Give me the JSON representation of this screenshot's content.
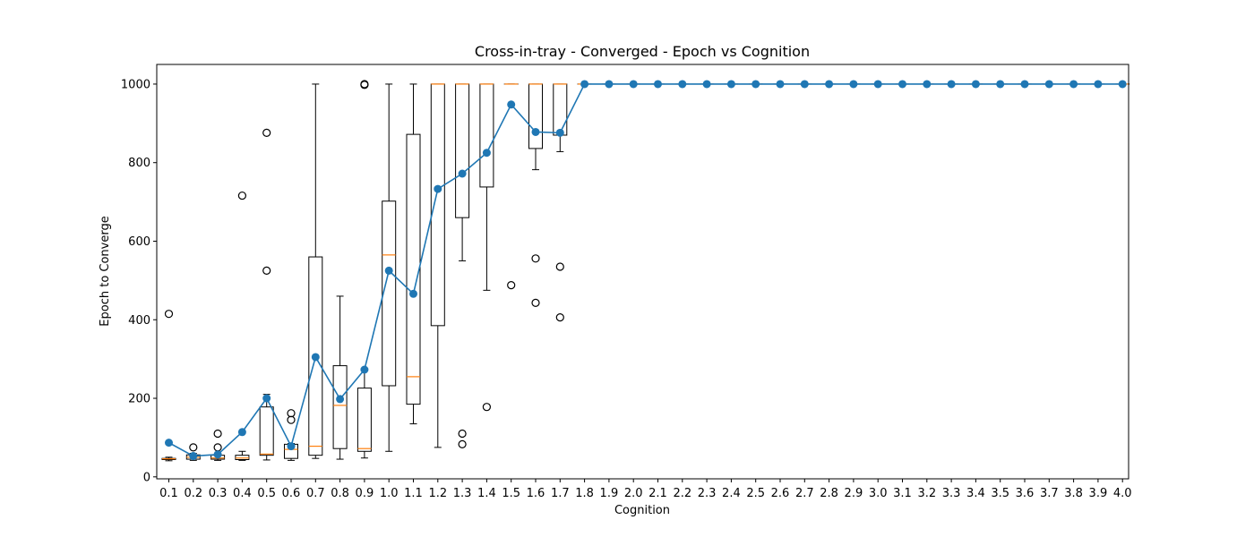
{
  "chart_data": {
    "type": "box",
    "title": "Cross-in-tray - Converged - Epoch vs Cognition",
    "xlabel": "Cognition",
    "ylabel": "Epoch to Converge",
    "ylim": [
      -5,
      1050
    ],
    "yticks": [
      0,
      200,
      400,
      600,
      800,
      1000
    ],
    "grid": false,
    "categories": [
      "0.1",
      "0.2",
      "0.3",
      "0.4",
      "0.5",
      "0.6",
      "0.7",
      "0.8",
      "0.9",
      "1.0",
      "1.1",
      "1.2",
      "1.3",
      "1.4",
      "1.5",
      "1.6",
      "1.7",
      "1.8",
      "1.9",
      "2.0",
      "2.1",
      "2.2",
      "2.3",
      "2.4",
      "2.5",
      "2.6",
      "2.7",
      "2.8",
      "2.9",
      "3.0",
      "3.1",
      "3.2",
      "3.3",
      "3.4",
      "3.5",
      "3.6",
      "3.7",
      "3.8",
      "3.9",
      "4.0"
    ],
    "boxes": [
      {
        "whislo": 41,
        "q1": 44,
        "med": 46,
        "q3": 47,
        "whishi": 50,
        "fliers": [
          415
        ]
      },
      {
        "whislo": 42,
        "q1": 45,
        "med": 50,
        "q3": 56,
        "whishi": 60,
        "fliers": [
          75
        ]
      },
      {
        "whislo": 42,
        "q1": 45,
        "med": 48,
        "q3": 55,
        "whishi": 60,
        "fliers": [
          75,
          110
        ]
      },
      {
        "whislo": 42,
        "q1": 44,
        "med": 48,
        "q3": 55,
        "whishi": 65,
        "fliers": [
          716
        ]
      },
      {
        "whislo": 43,
        "q1": 55,
        "med": 58,
        "q3": 178,
        "whishi": 210,
        "fliers": [
          525,
          876
        ]
      },
      {
        "whislo": 42,
        "q1": 47,
        "med": 70,
        "q3": 83,
        "whishi": 85,
        "fliers": [
          145,
          162
        ]
      },
      {
        "whislo": 47,
        "q1": 55,
        "med": 78,
        "q3": 560,
        "whishi": 1000,
        "fliers": []
      },
      {
        "whislo": 45,
        "q1": 72,
        "med": 182,
        "q3": 283,
        "whishi": 460,
        "fliers": []
      },
      {
        "whislo": 48,
        "q1": 65,
        "med": 72,
        "q3": 226,
        "whishi": 270,
        "fliers": [
          998,
          1000
        ]
      },
      {
        "whislo": 65,
        "q1": 232,
        "med": 565,
        "q3": 702,
        "whishi": 1000,
        "fliers": []
      },
      {
        "whislo": 135,
        "q1": 185,
        "med": 255,
        "q3": 872,
        "whishi": 1000,
        "fliers": []
      },
      {
        "whislo": 75,
        "q1": 385,
        "med": 1000,
        "q3": 1000,
        "whishi": 1000,
        "fliers": []
      },
      {
        "whislo": 550,
        "q1": 660,
        "med": 1000,
        "q3": 1000,
        "whishi": 1000,
        "fliers": [
          83,
          110
        ]
      },
      {
        "whislo": 475,
        "q1": 738,
        "med": 1000,
        "q3": 1000,
        "whishi": 1000,
        "fliers": [
          178
        ]
      },
      {
        "whislo": 1000,
        "q1": 1000,
        "med": 1000,
        "q3": 1000,
        "whishi": 1000,
        "fliers": [
          488
        ]
      },
      {
        "whislo": 782,
        "q1": 836,
        "med": 1000,
        "q3": 1000,
        "whishi": 1000,
        "fliers": [
          443,
          556
        ]
      },
      {
        "whislo": 828,
        "q1": 870,
        "med": 1000,
        "q3": 1000,
        "whishi": 1000,
        "fliers": [
          406,
          535
        ]
      },
      {
        "whislo": 1000,
        "q1": 1000,
        "med": 1000,
        "q3": 1000,
        "whishi": 1000,
        "fliers": []
      },
      {
        "whislo": 1000,
        "q1": 1000,
        "med": 1000,
        "q3": 1000,
        "whishi": 1000,
        "fliers": []
      },
      {
        "whislo": 1000,
        "q1": 1000,
        "med": 1000,
        "q3": 1000,
        "whishi": 1000,
        "fliers": []
      },
      {
        "whislo": 1000,
        "q1": 1000,
        "med": 1000,
        "q3": 1000,
        "whishi": 1000,
        "fliers": []
      },
      {
        "whislo": 1000,
        "q1": 1000,
        "med": 1000,
        "q3": 1000,
        "whishi": 1000,
        "fliers": []
      },
      {
        "whislo": 1000,
        "q1": 1000,
        "med": 1000,
        "q3": 1000,
        "whishi": 1000,
        "fliers": []
      },
      {
        "whislo": 1000,
        "q1": 1000,
        "med": 1000,
        "q3": 1000,
        "whishi": 1000,
        "fliers": []
      },
      {
        "whislo": 1000,
        "q1": 1000,
        "med": 1000,
        "q3": 1000,
        "whishi": 1000,
        "fliers": []
      },
      {
        "whislo": 1000,
        "q1": 1000,
        "med": 1000,
        "q3": 1000,
        "whishi": 1000,
        "fliers": []
      },
      {
        "whislo": 1000,
        "q1": 1000,
        "med": 1000,
        "q3": 1000,
        "whishi": 1000,
        "fliers": []
      },
      {
        "whislo": 1000,
        "q1": 1000,
        "med": 1000,
        "q3": 1000,
        "whishi": 1000,
        "fliers": []
      },
      {
        "whislo": 1000,
        "q1": 1000,
        "med": 1000,
        "q3": 1000,
        "whishi": 1000,
        "fliers": []
      },
      {
        "whislo": 1000,
        "q1": 1000,
        "med": 1000,
        "q3": 1000,
        "whishi": 1000,
        "fliers": []
      },
      {
        "whislo": 1000,
        "q1": 1000,
        "med": 1000,
        "q3": 1000,
        "whishi": 1000,
        "fliers": []
      },
      {
        "whislo": 1000,
        "q1": 1000,
        "med": 1000,
        "q3": 1000,
        "whishi": 1000,
        "fliers": []
      },
      {
        "whislo": 1000,
        "q1": 1000,
        "med": 1000,
        "q3": 1000,
        "whishi": 1000,
        "fliers": []
      },
      {
        "whislo": 1000,
        "q1": 1000,
        "med": 1000,
        "q3": 1000,
        "whishi": 1000,
        "fliers": []
      },
      {
        "whislo": 1000,
        "q1": 1000,
        "med": 1000,
        "q3": 1000,
        "whishi": 1000,
        "fliers": []
      },
      {
        "whislo": 1000,
        "q1": 1000,
        "med": 1000,
        "q3": 1000,
        "whishi": 1000,
        "fliers": []
      },
      {
        "whislo": 1000,
        "q1": 1000,
        "med": 1000,
        "q3": 1000,
        "whishi": 1000,
        "fliers": []
      },
      {
        "whislo": 1000,
        "q1": 1000,
        "med": 1000,
        "q3": 1000,
        "whishi": 1000,
        "fliers": []
      },
      {
        "whislo": 1000,
        "q1": 1000,
        "med": 1000,
        "q3": 1000,
        "whishi": 1000,
        "fliers": []
      },
      {
        "whislo": 1000,
        "q1": 1000,
        "med": 1000,
        "q3": 1000,
        "whishi": 1000,
        "fliers": []
      }
    ],
    "series": [
      {
        "type": "line",
        "marker": "circle",
        "values": [
          87,
          53,
          57,
          114,
          200,
          78,
          305,
          198,
          273,
          525,
          466,
          733,
          772,
          825,
          948,
          878,
          876,
          1000,
          1000,
          1000,
          1000,
          1000,
          1000,
          1000,
          1000,
          1000,
          1000,
          1000,
          1000,
          1000,
          1000,
          1000,
          1000,
          1000,
          1000,
          1000,
          1000,
          1000,
          1000,
          1000
        ]
      }
    ],
    "colors": {
      "box": "#000000",
      "median": "#ff7f0e",
      "line": "#1f77b4",
      "flier": "#000000"
    }
  }
}
